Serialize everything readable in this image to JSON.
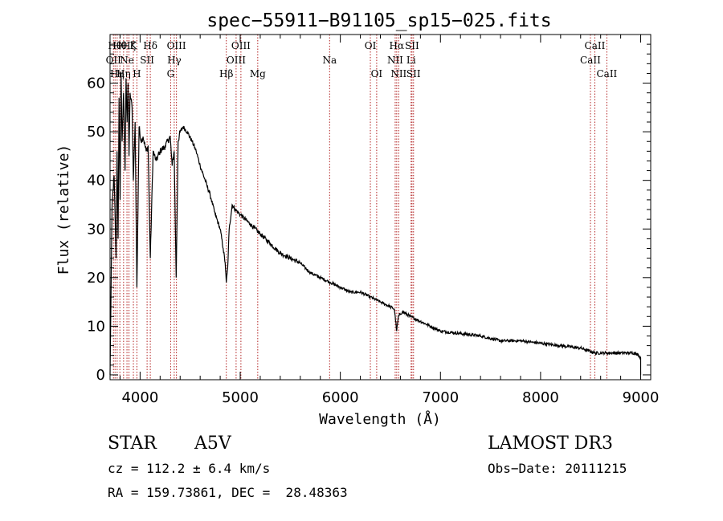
{
  "chart_data": {
    "type": "line",
    "title": "spec−55911−B91105_sp15−025.fits",
    "xlabel": "Wavelength (Å)",
    "ylabel": "Flux (relative)",
    "xlim": [
      3700,
      9100
    ],
    "ylim": [
      -1,
      70
    ],
    "xticks": [
      4000,
      5000,
      6000,
      7000,
      8000,
      9000
    ],
    "yticks": [
      0,
      10,
      20,
      30,
      40,
      50,
      60
    ],
    "line_color": "#000000",
    "marker_color": "#b22222",
    "series": [
      {
        "name": "spectrum",
        "x": [
          3700,
          3720,
          3740,
          3760,
          3770,
          3780,
          3790,
          3800,
          3810,
          3820,
          3835,
          3850,
          3860,
          3870,
          3880,
          3889,
          3900,
          3920,
          3933,
          3950,
          3968,
          3990,
          4010,
          4030,
          4060,
          4080,
          4102,
          4130,
          4160,
          4200,
          4250,
          4300,
          4320,
          4340,
          4360,
          4380,
          4400,
          4430,
          4470,
          4520,
          4560,
          4600,
          4650,
          4700,
          4750,
          4800,
          4830,
          4850,
          4861,
          4875,
          4890,
          4920,
          4950,
          5000,
          5100,
          5200,
          5300,
          5400,
          5500,
          5600,
          5700,
          5800,
          5900,
          6000,
          6100,
          6200,
          6300,
          6400,
          6500,
          6540,
          6563,
          6580,
          6620,
          6700,
          6800,
          6900,
          7000,
          7200,
          7400,
          7600,
          7800,
          8000,
          8200,
          8400,
          8542,
          8662,
          8800,
          8950,
          9000
        ],
        "y": [
          0,
          35,
          41,
          24,
          46,
          28,
          57,
          36,
          62,
          48,
          58,
          42,
          61,
          52,
          60,
          45,
          58,
          55,
          40,
          52,
          18,
          51,
          48,
          49,
          46,
          47,
          24,
          46,
          44,
          46,
          47,
          49,
          43,
          46,
          20,
          48,
          50,
          51,
          50,
          48,
          46,
          43,
          40,
          37,
          33,
          30,
          26,
          23,
          19,
          22,
          30,
          35,
          34,
          33,
          31,
          29,
          27,
          25,
          24,
          23,
          21,
          20,
          19,
          18,
          17,
          17,
          16,
          15,
          14,
          13.5,
          9,
          12,
          13,
          12,
          11,
          10,
          9,
          8.5,
          8,
          7,
          7,
          6.5,
          6,
          5.5,
          4.5,
          4.5,
          4.5,
          4.5,
          3.5
        ]
      }
    ],
    "line_markers": [
      {
        "wl": 3734,
        "label": "OⅠⅠ",
        "row": 1
      },
      {
        "wl": 3750,
        "label": "Hθ",
        "row": 0
      },
      {
        "wl": 3771,
        "label": "Hη",
        "row": 2
      },
      {
        "wl": 3798,
        "label": "Hθ",
        "row": 0
      },
      {
        "wl": 3835,
        "label": "Hη",
        "row": 2
      },
      {
        "wl": 3869,
        "label": "Ne",
        "row": 1
      },
      {
        "wl": 3889,
        "label": "Hζ",
        "row": 0
      },
      {
        "wl": 3933,
        "label": "K",
        "row": 0
      },
      {
        "wl": 3968,
        "label": "H",
        "row": 2
      },
      {
        "wl": 4070,
        "label": "SⅠⅠ",
        "row": 1
      },
      {
        "wl": 4102,
        "label": "Hδ",
        "row": 0
      },
      {
        "wl": 4305,
        "label": "G",
        "row": 2
      },
      {
        "wl": 4341,
        "label": "Hγ",
        "row": 1
      },
      {
        "wl": 4363,
        "label": "OⅠⅠⅠ",
        "row": 0
      },
      {
        "wl": 4861,
        "label": "Hβ",
        "row": 2
      },
      {
        "wl": 4959,
        "label": "OⅠⅠⅠ",
        "row": 1
      },
      {
        "wl": 5007,
        "label": "OⅠⅠⅠ",
        "row": 0
      },
      {
        "wl": 5175,
        "label": "Mg",
        "row": 2
      },
      {
        "wl": 5893,
        "label": "Na",
        "row": 1
      },
      {
        "wl": 6300,
        "label": "OⅠ",
        "row": 0
      },
      {
        "wl": 6363,
        "label": "OⅠ",
        "row": 2
      },
      {
        "wl": 6548,
        "label": "NⅠⅠ",
        "row": 1
      },
      {
        "wl": 6563,
        "label": "Hα",
        "row": 0
      },
      {
        "wl": 6583,
        "label": "NⅠⅠ",
        "row": 2
      },
      {
        "wl": 6707,
        "label": "Li",
        "row": 1
      },
      {
        "wl": 6716,
        "label": "SⅠⅠ",
        "row": 0
      },
      {
        "wl": 6731,
        "label": "SⅠⅠ",
        "row": 2
      },
      {
        "wl": 8498,
        "label": "CaⅠⅠ",
        "row": 1
      },
      {
        "wl": 8542,
        "label": "CaⅠⅠ",
        "row": 0
      },
      {
        "wl": 8662,
        "label": "CaⅠⅠ",
        "row": 2
      }
    ]
  },
  "info": {
    "object_class": "STAR",
    "subclass": "A5V",
    "cz": "cz = 112.2 ± 6.4 km/s",
    "coords": "RA = 159.73861, DEC =  28.48363",
    "survey": "LAMOST DR3",
    "obs_date": "Obs−Date: 20111215"
  }
}
